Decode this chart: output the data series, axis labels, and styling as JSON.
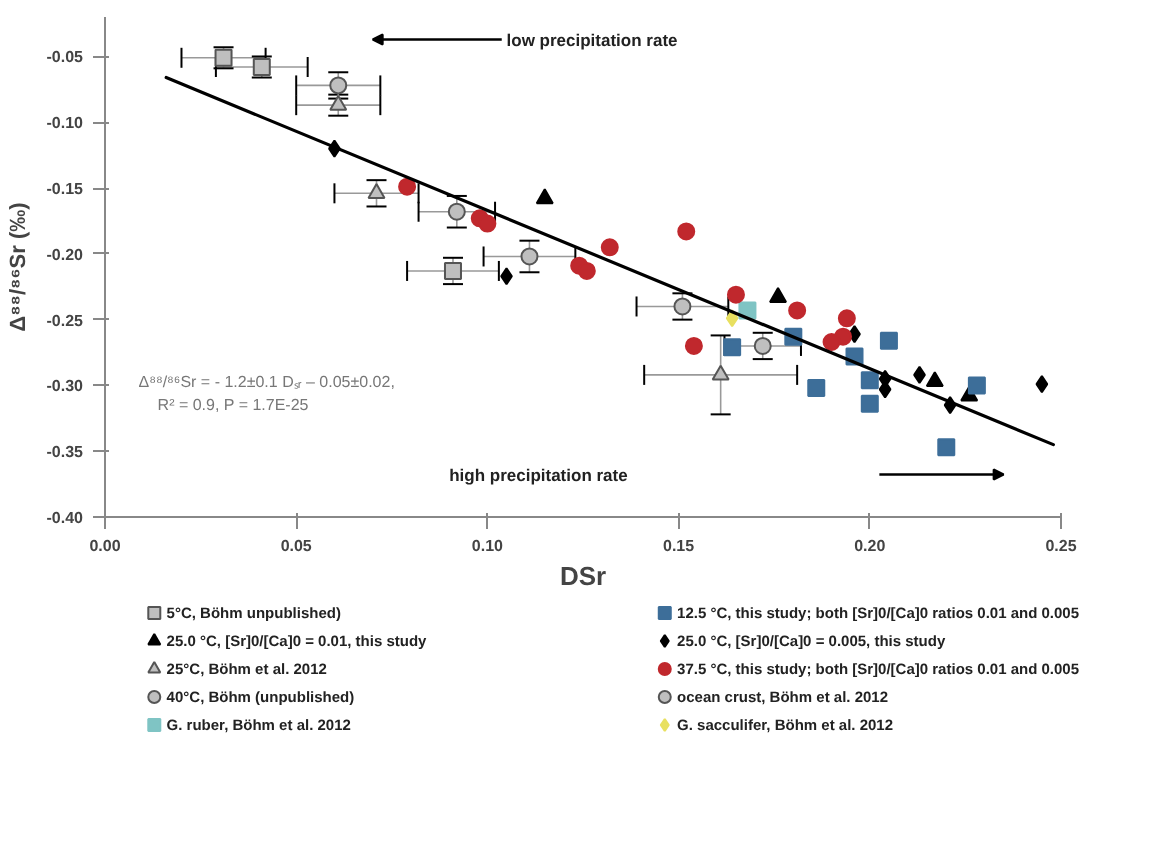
{
  "chart_data": {
    "type": "scatter",
    "xlabel": "DSr",
    "ylabel": "Δ⁸⁸/⁸⁶Sr (‰)",
    "xlim": [
      0,
      0.25
    ],
    "ylim": [
      -0.4,
      -0.02
    ],
    "xticks": [
      {
        "value": 0,
        "label": "0.00"
      },
      0.05,
      {
        "value": 0.1,
        "label": "0.10"
      },
      0.15,
      {
        "value": 0.2,
        "label": "0.20"
      },
      0.25
    ],
    "yticks": [
      -0.05,
      {
        "value": -0.1,
        "label": "-0.10"
      },
      -0.15,
      {
        "value": -0.2,
        "label": "-0.20"
      },
      -0.25,
      {
        "value": -0.3,
        "label": "-0.30"
      },
      -0.35,
      {
        "value": -0.4,
        "label": "-0.40"
      }
    ],
    "grid": false,
    "legend": "bottom",
    "annotations": [
      "low precipitation rate",
      "high precipitation rate",
      "Δ⁸⁸/⁸⁶Sr = - 1.2±0.1 Dₛᵣ – 0.05±0.02,",
      "R² = 0.9, P = 1.7E-25"
    ],
    "series": [
      {
        "name": "5°C, Böhm unpublished)",
        "color": "#bfbfbf",
        "marker": "square",
        "x": [
          0.031,
          0.041,
          0.091
        ],
        "values": [
          -0.051,
          -0.058,
          -0.213
        ],
        "xerrors": [
          0.011,
          0.012,
          0.012
        ],
        "errors": [
          0.008,
          0.008,
          0.01
        ]
      },
      {
        "name": "25.0 °C, [Sr]0/[Ca]0 = 0.01, this study",
        "color": "#000000",
        "marker": "triangle",
        "x": [
          0.115,
          0.176,
          0.217,
          0.226
        ],
        "values": [
          -0.158,
          -0.233,
          -0.297,
          -0.308
        ]
      },
      {
        "name": "25°C, Böhm et al. 2012",
        "color": "#bfbfbf",
        "marker": "triangle",
        "x": [
          0.061,
          0.071,
          0.161
        ],
        "values": [
          -0.087,
          -0.154,
          -0.292
        ],
        "xerrors": [
          0.011,
          0.011,
          0.02
        ],
        "errors": [
          0.008,
          0.01,
          0.03
        ]
      },
      {
        "name": "40°C, Böhm (unpublished)",
        "color": "#bfbfbf",
        "marker": "circle",
        "x": [
          0.061,
          0.092
        ],
        "values": [
          -0.072,
          -0.168
        ],
        "xerrors": [
          0.011,
          0.01
        ],
        "errors": [
          0.01,
          0.012
        ]
      },
      {
        "name": "G. ruber, Böhm et al. 2012",
        "color": "#7fc4c4",
        "marker": "square",
        "x": [
          0.168
        ],
        "values": [
          -0.243
        ]
      },
      {
        "name": "12.5 °C, this study; both [Sr]0/[Ca]0 ratios 0.01 and 0.005",
        "color": "#3d6e99",
        "marker": "square",
        "x": [
          0.164,
          0.18,
          0.205,
          0.196,
          0.2,
          0.186,
          0.2,
          0.228,
          0.22
        ],
        "values": [
          -0.271,
          -0.263,
          -0.266,
          -0.278,
          -0.296,
          -0.302,
          -0.314,
          -0.3,
          -0.347
        ]
      },
      {
        "name": "25.0 °C, [Sr]0/[Ca]0 = 0.005, this study",
        "color": "#000000",
        "marker": "diamond",
        "x": [
          0.06,
          0.105,
          0.196,
          0.204,
          0.204,
          0.213,
          0.221,
          0.245
        ],
        "values": [
          -0.12,
          -0.217,
          -0.261,
          -0.295,
          -0.303,
          -0.292,
          -0.315,
          -0.299
        ]
      },
      {
        "name": "37.5 °C, this study; both [Sr]0/[Ca]0 ratios 0.01 and 0.005",
        "color": "#c0282d",
        "marker": "circle",
        "x": [
          0.079,
          0.098,
          0.1,
          0.132,
          0.124,
          0.126,
          0.152,
          0.165,
          0.154,
          0.181,
          0.194,
          0.193,
          0.19
        ],
        "values": [
          -0.149,
          -0.173,
          -0.177,
          -0.195,
          -0.209,
          -0.213,
          -0.183,
          -0.231,
          -0.27,
          -0.243,
          -0.249,
          -0.263,
          -0.267
        ]
      },
      {
        "name": "ocean crust, Böhm et al. 2012",
        "color": "#bfbfbf",
        "marker": "circle",
        "x": [
          0.111,
          0.151,
          0.172
        ],
        "values": [
          -0.202,
          -0.24,
          -0.27
        ],
        "xerrors": [
          0.012,
          0.012,
          0.01
        ],
        "errors": [
          0.012,
          0.01,
          0.01
        ]
      },
      {
        "name": "G. sacculifer, Böhm et al. 2012",
        "color": "#e8e060",
        "marker": "diamond",
        "x": [
          0.164
        ],
        "values": [
          -0.249
        ]
      },
      {
        "type": "line",
        "color": "#000000",
        "x": [
          0.016,
          0.248
        ],
        "values": [
          -0.066,
          -0.345
        ]
      }
    ]
  }
}
